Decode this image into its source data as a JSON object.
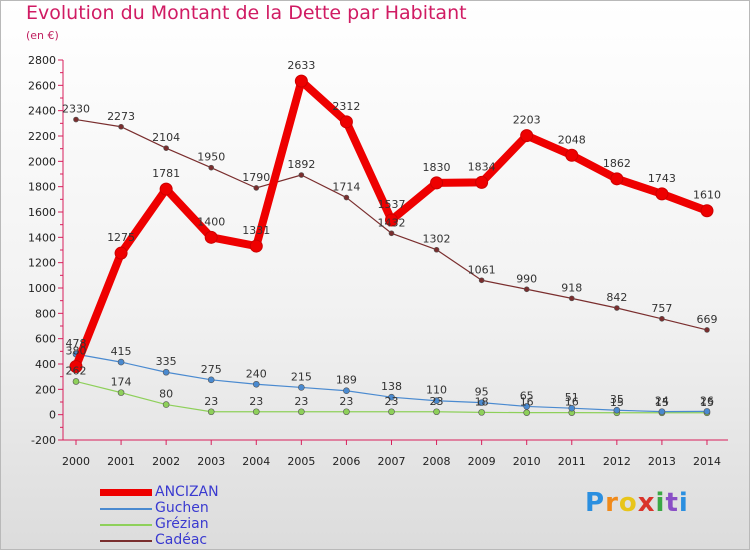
{
  "title": "Evolution du Montant de la Dette par Habitant",
  "subtitle": "(en €)",
  "logo": {
    "text": "Proxiti",
    "colors": [
      "#2b8fe0",
      "#f08a1a",
      "#e8c51a",
      "#d9342b",
      "#3aa845",
      "#8a4fc6",
      "#2b8fe0"
    ]
  },
  "chart_data": {
    "type": "line",
    "categories": [
      "2000",
      "2001",
      "2002",
      "2003",
      "2004",
      "2005",
      "2006",
      "2007",
      "2008",
      "2009",
      "2010",
      "2011",
      "2012",
      "2013",
      "2014"
    ],
    "ylim": [
      -200,
      2800
    ],
    "yticks": [
      -200,
      0,
      200,
      400,
      600,
      800,
      1000,
      1200,
      1400,
      1600,
      1800,
      2000,
      2200,
      2400,
      2600,
      2800
    ],
    "grid": false,
    "legend_position": "bottom-left",
    "series": [
      {
        "name": "ANCIZAN",
        "color": "#ee0000",
        "line_width": 8,
        "marker_radius": 6,
        "values": [
          380,
          1275,
          1781,
          1400,
          1331,
          2633,
          2312,
          1537,
          1830,
          1834,
          2203,
          2048,
          1862,
          1743,
          1610
        ]
      },
      {
        "name": "Guchen",
        "color": "#4a8ad0",
        "line_width": 1.2,
        "marker_radius": 3,
        "values": [
          478,
          415,
          335,
          275,
          240,
          215,
          189,
          138,
          110,
          95,
          65,
          51,
          35,
          24,
          26
        ]
      },
      {
        "name": "Grézian",
        "color": "#8ed05a",
        "line_width": 1.2,
        "marker_radius": 3,
        "values": [
          262,
          174,
          80,
          23,
          23,
          23,
          23,
          23,
          23,
          18,
          16,
          16,
          15,
          15,
          15
        ]
      },
      {
        "name": "Cadéac",
        "color": "#7a2e2e",
        "line_width": 1.2,
        "marker_radius": 2.5,
        "values": [
          2330,
          2273,
          2104,
          1950,
          1790,
          1892,
          1714,
          1432,
          1302,
          1061,
          990,
          918,
          842,
          757,
          669
        ]
      }
    ],
    "data_labels": [
      {
        "series": "ANCIZAN",
        "labels": [
          "380",
          "1275",
          "1781",
          "1400",
          "1331",
          "2633",
          "2312",
          "1537",
          "1830",
          "1834",
          "2203",
          "2048",
          "1862",
          "1743",
          "1610"
        ]
      },
      {
        "series": "Guchen",
        "labels": [
          "478",
          "415",
          "335",
          "275",
          "240",
          "215",
          "189",
          "138",
          "110",
          "95",
          "65",
          "51",
          "35",
          "24",
          "26"
        ]
      },
      {
        "series": "Grézian",
        "labels": [
          "262",
          "174",
          "80",
          "23",
          "23",
          "23",
          "23",
          "23",
          "23",
          "18",
          "16",
          "16",
          "15",
          "15",
          "15"
        ]
      },
      {
        "series": "Cadéac",
        "labels": [
          "2330",
          "2273",
          "2104",
          "1950",
          "1790",
          "1892",
          "1714",
          "1432",
          "1302",
          "1061",
          "990",
          "918",
          "842",
          "757",
          "669"
        ]
      }
    ]
  }
}
